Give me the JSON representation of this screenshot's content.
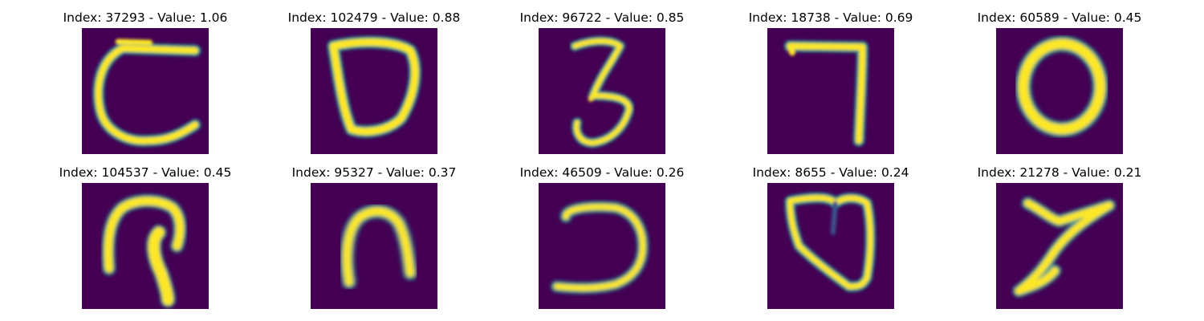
{
  "figure": {
    "background": "#ffffff",
    "colormap": "viridis",
    "colors": {
      "background": "#440154",
      "mid": "#21918c",
      "high": "#fde725"
    },
    "panels": [
      {
        "title": "Index: 37293 - Value: 1.06",
        "index": 37293,
        "value": 1.06,
        "glyph": "C-shape"
      },
      {
        "title": "Index: 102479 - Value: 0.88",
        "index": 102479,
        "value": 0.88,
        "glyph": "D-shape"
      },
      {
        "title": "Index: 96722 - Value: 0.85",
        "index": 96722,
        "value": 0.85,
        "glyph": "digit-3"
      },
      {
        "title": "Index: 18738 - Value: 0.69",
        "index": 18738,
        "value": 0.69,
        "glyph": "digit-7"
      },
      {
        "title": "Index: 60589 - Value: 0.45",
        "index": 60589,
        "value": 0.45,
        "glyph": "digit-0"
      },
      {
        "title": "Index: 104537 - Value: 0.45",
        "index": 104537,
        "value": 0.45,
        "glyph": "loop-shape"
      },
      {
        "title": "Index: 95327 - Value: 0.37",
        "index": 95327,
        "value": 0.37,
        "glyph": "arch-shape"
      },
      {
        "title": "Index: 46509 - Value: 0.26",
        "index": 46509,
        "value": 0.26,
        "glyph": "reversed-c-shape"
      },
      {
        "title": "Index: 8655 - Value: 0.24",
        "index": 8655,
        "value": 0.24,
        "glyph": "heart-shape"
      },
      {
        "title": "Index: 21278 - Value: 0.21",
        "index": 21278,
        "value": 0.21,
        "glyph": "z-shape"
      }
    ]
  }
}
